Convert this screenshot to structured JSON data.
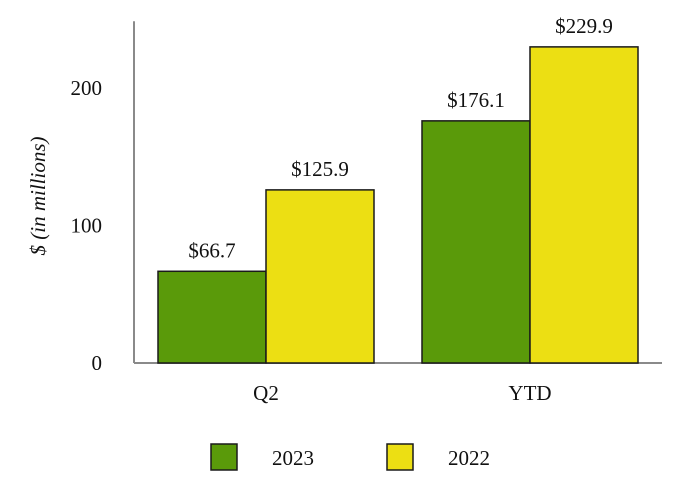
{
  "chart_data": {
    "type": "bar",
    "categories": [
      "Q2",
      "YTD"
    ],
    "series": [
      {
        "name": "2023",
        "color": "#5a9a0a",
        "values": [
          66.7,
          176.1
        ],
        "labels": [
          "$66.7",
          "$176.1"
        ]
      },
      {
        "name": "2022",
        "color": "#ecdf13",
        "values": [
          125.9,
          229.9
        ],
        "labels": [
          "$125.9",
          "$229.9"
        ]
      }
    ],
    "ylabel": "$ (in millions)",
    "xlabel": "",
    "ylim": [
      0,
      250
    ],
    "yticks": [
      0,
      100,
      200
    ],
    "ytick_labels": [
      "0",
      "100",
      "200"
    ],
    "legend_position": "bottom",
    "grid": false
  }
}
